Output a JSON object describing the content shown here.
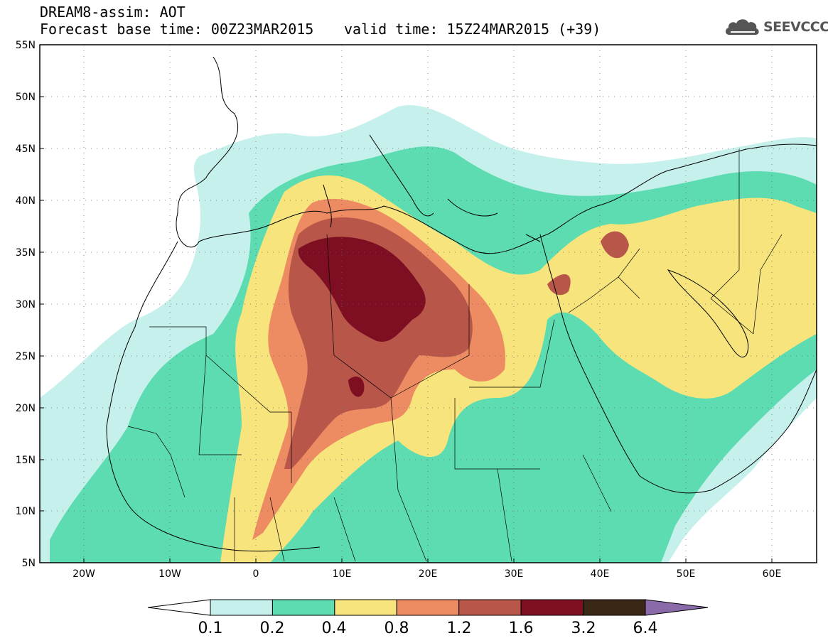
{
  "header": {
    "title_line1": "DREAM8-assim: AOT",
    "base_time": "Forecast base time: 00Z23MAR2015",
    "valid_time": "valid time: 15Z24MAR2015 (+39)",
    "logo_text": "SEEVCCC",
    "logo_icon": "cloud-icon"
  },
  "map": {
    "lat_labels": [
      "55N",
      "50N",
      "45N",
      "40N",
      "35N",
      "30N",
      "25N",
      "20N",
      "15N",
      "10N",
      "5N"
    ],
    "lon_labels": [
      "20W",
      "10W",
      "0",
      "10E",
      "20E",
      "30E",
      "40E",
      "50E",
      "60E"
    ],
    "lat_range": [
      5,
      55
    ],
    "lon_range": [
      -25,
      65
    ],
    "grid": "dotted"
  },
  "colorbar": {
    "colors": [
      "#ffffff",
      "#c6f0ec",
      "#5cdcb0",
      "#f7e47c",
      "#ed8b62",
      "#b8564a",
      "#7e0f23",
      "#3b2716",
      "#8a6aa8"
    ],
    "labels": [
      "0.1",
      "0.2",
      "0.4",
      "0.8",
      "1.2",
      "1.6",
      "3.2",
      "6.4"
    ]
  }
}
